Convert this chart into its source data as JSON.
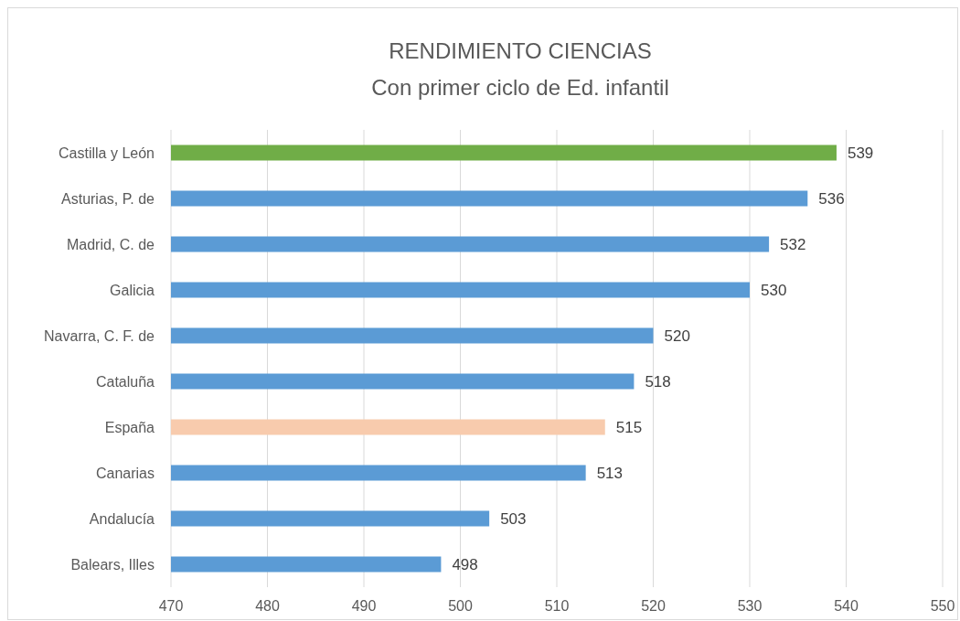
{
  "chart_data": {
    "type": "bar",
    "orientation": "horizontal",
    "title": "RENDIMIENTO CIENCIAS",
    "subtitle": "Con primer ciclo de Ed. infantil",
    "categories": [
      "Castilla y León",
      "Asturias, P. de",
      "Madrid, C. de",
      "Galicia",
      "Navarra, C. F. de",
      "Cataluña",
      "España",
      "Canarias",
      "Andalucía",
      "Balears, Illes"
    ],
    "values": [
      539,
      536,
      532,
      530,
      520,
      518,
      515,
      513,
      503,
      498
    ],
    "colors": [
      "#70ad47",
      "#5b9bd5",
      "#5b9bd5",
      "#5b9bd5",
      "#5b9bd5",
      "#5b9bd5",
      "#f8cbad",
      "#5b9bd5",
      "#5b9bd5",
      "#5b9bd5"
    ],
    "xlim": [
      470,
      550
    ],
    "xticks": [
      470,
      480,
      490,
      500,
      510,
      520,
      530,
      540,
      550
    ],
    "grid": "x",
    "data_labels": true
  }
}
